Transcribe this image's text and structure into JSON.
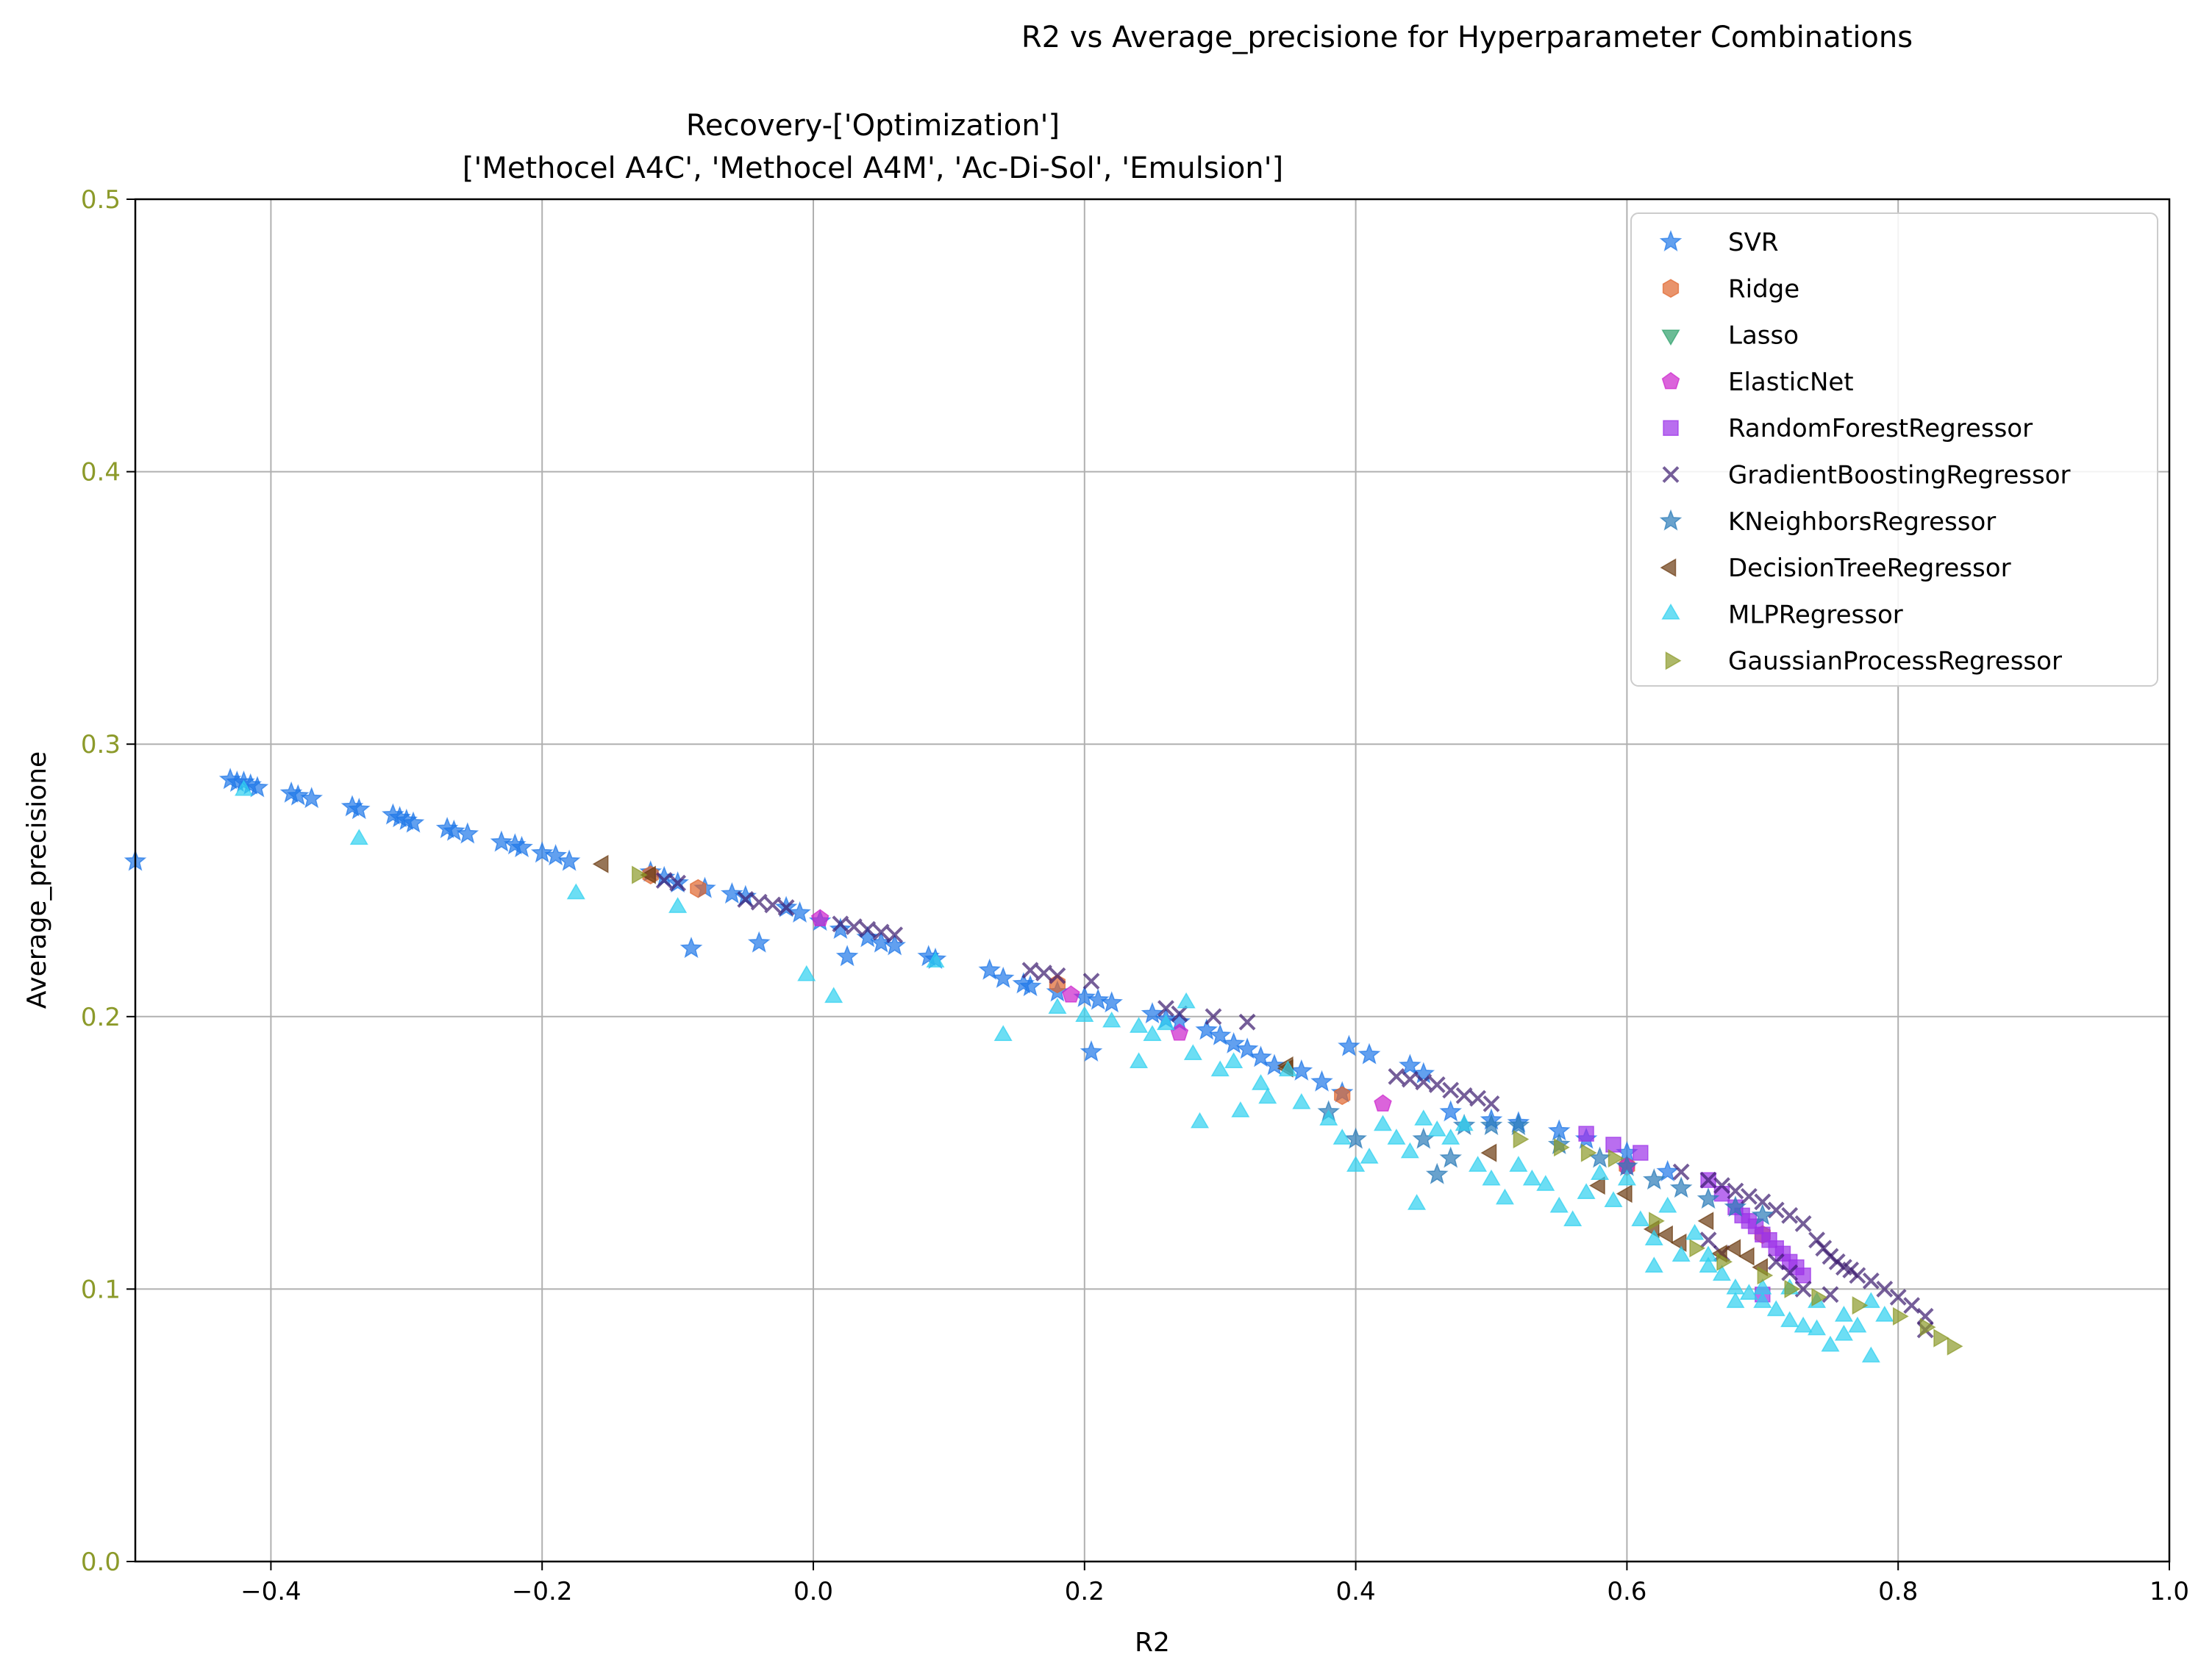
{
  "figure": {
    "suptitle": "R2 vs Average_precisione for Hyperparameter Combinations",
    "title_line1": "Recovery-['Optimization']",
    "title_line2": "['Methocel A4C', 'Methocel A4M', 'Ac-Di-Sol', 'Emulsion']"
  },
  "chart_data": {
    "type": "scatter",
    "xlabel": "R2",
    "ylabel": "Average_precisione",
    "xlim": [
      -0.5,
      1.0
    ],
    "ylim": [
      0.0,
      0.5
    ],
    "xticks": [
      -0.4,
      -0.2,
      0.0,
      0.2,
      0.4,
      0.6,
      0.8,
      1.0
    ],
    "xtick_labels": [
      "−0.4",
      "−0.2",
      "0.0",
      "0.2",
      "0.4",
      "0.6",
      "0.8",
      "1.0"
    ],
    "yticks": [
      0.0,
      0.1,
      0.2,
      0.3,
      0.4,
      0.5
    ],
    "ytick_labels": [
      "0.0",
      "0.1",
      "0.2",
      "0.3",
      "0.4",
      "0.5"
    ],
    "ytick_color": "#8c9a2a",
    "grid": true,
    "legend_position": "top-right",
    "series": [
      {
        "name": "SVR",
        "marker": "star",
        "color": "#1f77e8",
        "points": [
          [
            -0.5,
            0.257
          ],
          [
            -0.43,
            0.287
          ],
          [
            -0.425,
            0.286
          ],
          [
            -0.42,
            0.286
          ],
          [
            -0.415,
            0.285
          ],
          [
            -0.41,
            0.284
          ],
          [
            -0.385,
            0.282
          ],
          [
            -0.38,
            0.281
          ],
          [
            -0.37,
            0.28
          ],
          [
            -0.34,
            0.277
          ],
          [
            -0.335,
            0.276
          ],
          [
            -0.31,
            0.274
          ],
          [
            -0.305,
            0.273
          ],
          [
            -0.3,
            0.272
          ],
          [
            -0.295,
            0.271
          ],
          [
            -0.27,
            0.269
          ],
          [
            -0.265,
            0.268
          ],
          [
            -0.255,
            0.267
          ],
          [
            -0.23,
            0.264
          ],
          [
            -0.22,
            0.263
          ],
          [
            -0.215,
            0.262
          ],
          [
            -0.2,
            0.26
          ],
          [
            -0.19,
            0.259
          ],
          [
            -0.18,
            0.257
          ],
          [
            -0.12,
            0.253
          ],
          [
            -0.11,
            0.251
          ],
          [
            -0.1,
            0.249
          ],
          [
            -0.09,
            0.225
          ],
          [
            -0.08,
            0.247
          ],
          [
            -0.06,
            0.245
          ],
          [
            -0.05,
            0.244
          ],
          [
            -0.04,
            0.227
          ],
          [
            -0.02,
            0.24
          ],
          [
            -0.01,
            0.238
          ],
          [
            0.005,
            0.235
          ],
          [
            0.02,
            0.232
          ],
          [
            0.025,
            0.222
          ],
          [
            0.04,
            0.229
          ],
          [
            0.05,
            0.227
          ],
          [
            0.06,
            0.226
          ],
          [
            0.085,
            0.222
          ],
          [
            0.09,
            0.221
          ],
          [
            0.13,
            0.217
          ],
          [
            0.14,
            0.214
          ],
          [
            0.155,
            0.212
          ],
          [
            0.16,
            0.211
          ],
          [
            0.18,
            0.209
          ],
          [
            0.2,
            0.207
          ],
          [
            0.205,
            0.187
          ],
          [
            0.21,
            0.206
          ],
          [
            0.22,
            0.205
          ],
          [
            0.25,
            0.201
          ],
          [
            0.26,
            0.199
          ],
          [
            0.27,
            0.198
          ],
          [
            0.29,
            0.195
          ],
          [
            0.3,
            0.193
          ],
          [
            0.31,
            0.19
          ],
          [
            0.32,
            0.188
          ],
          [
            0.33,
            0.185
          ],
          [
            0.34,
            0.182
          ],
          [
            0.36,
            0.18
          ],
          [
            0.375,
            0.176
          ],
          [
            0.39,
            0.172
          ],
          [
            0.395,
            0.189
          ],
          [
            0.41,
            0.186
          ],
          [
            0.44,
            0.182
          ],
          [
            0.45,
            0.179
          ],
          [
            0.47,
            0.165
          ],
          [
            0.5,
            0.162
          ],
          [
            0.52,
            0.161
          ],
          [
            0.55,
            0.158
          ],
          [
            0.57,
            0.155
          ],
          [
            0.6,
            0.15
          ],
          [
            0.63,
            0.143
          ]
        ]
      },
      {
        "name": "Ridge",
        "marker": "hexagon",
        "color": "#e0652c",
        "points": [
          [
            -0.12,
            0.252
          ],
          [
            -0.085,
            0.247
          ],
          [
            0.18,
            0.212
          ],
          [
            0.39,
            0.171
          ],
          [
            0.6,
            0.145
          ],
          [
            0.7,
            0.12
          ]
        ]
      },
      {
        "name": "Lasso",
        "marker": "triangle-down",
        "color": "#2ca06a",
        "points": []
      },
      {
        "name": "ElasticNet",
        "marker": "pentagon",
        "color": "#cc22cc",
        "points": [
          [
            0.005,
            0.236
          ],
          [
            0.19,
            0.208
          ],
          [
            0.27,
            0.194
          ],
          [
            0.42,
            0.168
          ],
          [
            0.6,
            0.145
          ]
        ]
      },
      {
        "name": "RandomForestRegressor",
        "marker": "square",
        "color": "#9b30e8",
        "points": [
          [
            0.57,
            0.157
          ],
          [
            0.59,
            0.153
          ],
          [
            0.61,
            0.15
          ],
          [
            0.66,
            0.14
          ],
          [
            0.67,
            0.135
          ],
          [
            0.68,
            0.13
          ],
          [
            0.685,
            0.127
          ],
          [
            0.69,
            0.125
          ],
          [
            0.695,
            0.123
          ],
          [
            0.7,
            0.12
          ],
          [
            0.705,
            0.118
          ],
          [
            0.71,
            0.115
          ],
          [
            0.715,
            0.113
          ],
          [
            0.72,
            0.11
          ],
          [
            0.725,
            0.108
          ],
          [
            0.7,
            0.098
          ],
          [
            0.73,
            0.105
          ]
        ]
      },
      {
        "name": "GradientBoostingRegressor",
        "marker": "x",
        "color": "#3b1a6e",
        "points": [
          [
            -0.11,
            0.25
          ],
          [
            -0.1,
            0.249
          ],
          [
            -0.05,
            0.243
          ],
          [
            -0.04,
            0.242
          ],
          [
            -0.03,
            0.241
          ],
          [
            -0.02,
            0.24
          ],
          [
            0.02,
            0.234
          ],
          [
            0.03,
            0.233
          ],
          [
            0.04,
            0.232
          ],
          [
            0.05,
            0.231
          ],
          [
            0.06,
            0.23
          ],
          [
            0.16,
            0.217
          ],
          [
            0.17,
            0.216
          ],
          [
            0.18,
            0.215
          ],
          [
            0.205,
            0.213
          ],
          [
            0.26,
            0.203
          ],
          [
            0.27,
            0.201
          ],
          [
            0.295,
            0.2
          ],
          [
            0.32,
            0.198
          ],
          [
            0.43,
            0.178
          ],
          [
            0.44,
            0.177
          ],
          [
            0.45,
            0.176
          ],
          [
            0.46,
            0.175
          ],
          [
            0.47,
            0.173
          ],
          [
            0.48,
            0.171
          ],
          [
            0.49,
            0.17
          ],
          [
            0.5,
            0.168
          ],
          [
            0.64,
            0.143
          ],
          [
            0.66,
            0.14
          ],
          [
            0.67,
            0.138
          ],
          [
            0.68,
            0.136
          ],
          [
            0.69,
            0.134
          ],
          [
            0.7,
            0.132
          ],
          [
            0.71,
            0.129
          ],
          [
            0.72,
            0.127
          ],
          [
            0.73,
            0.124
          ],
          [
            0.74,
            0.118
          ],
          [
            0.745,
            0.115
          ],
          [
            0.75,
            0.112
          ],
          [
            0.755,
            0.11
          ],
          [
            0.76,
            0.108
          ],
          [
            0.765,
            0.107
          ],
          [
            0.77,
            0.105
          ],
          [
            0.78,
            0.103
          ],
          [
            0.79,
            0.1
          ],
          [
            0.8,
            0.097
          ],
          [
            0.81,
            0.094
          ],
          [
            0.82,
            0.09
          ],
          [
            0.82,
            0.085
          ],
          [
            0.67,
            0.113
          ],
          [
            0.66,
            0.118
          ],
          [
            0.71,
            0.11
          ],
          [
            0.72,
            0.106
          ],
          [
            0.73,
            0.1
          ],
          [
            0.75,
            0.098
          ]
        ]
      },
      {
        "name": "KNeighborsRegressor",
        "marker": "star",
        "color": "#2a7ab8",
        "points": [
          [
            0.38,
            0.165
          ],
          [
            0.4,
            0.155
          ],
          [
            0.45,
            0.155
          ],
          [
            0.46,
            0.142
          ],
          [
            0.47,
            0.148
          ],
          [
            0.48,
            0.16
          ],
          [
            0.5,
            0.16
          ],
          [
            0.52,
            0.16
          ],
          [
            0.55,
            0.153
          ],
          [
            0.58,
            0.148
          ],
          [
            0.6,
            0.145
          ],
          [
            0.62,
            0.14
          ],
          [
            0.64,
            0.137
          ],
          [
            0.66,
            0.133
          ],
          [
            0.68,
            0.13
          ],
          [
            0.7,
            0.127
          ]
        ]
      },
      {
        "name": "DecisionTreeRegressor",
        "marker": "triangle-left",
        "color": "#6b3a10",
        "points": [
          [
            -0.155,
            0.256
          ],
          [
            -0.12,
            0.252
          ],
          [
            0.35,
            0.181
          ],
          [
            0.35,
            0.182
          ],
          [
            0.5,
            0.15
          ],
          [
            0.58,
            0.138
          ],
          [
            0.6,
            0.135
          ],
          [
            0.62,
            0.122
          ],
          [
            0.63,
            0.12
          ],
          [
            0.64,
            0.117
          ],
          [
            0.66,
            0.125
          ],
          [
            0.67,
            0.113
          ],
          [
            0.68,
            0.115
          ],
          [
            0.69,
            0.112
          ],
          [
            0.7,
            0.108
          ]
        ]
      },
      {
        "name": "MLPRegressor",
        "marker": "triangle-up",
        "color": "#2dd0f0",
        "points": [
          [
            -0.42,
            0.283
          ],
          [
            -0.335,
            0.265
          ],
          [
            -0.175,
            0.245
          ],
          [
            -0.1,
            0.24
          ],
          [
            0.09,
            0.22
          ],
          [
            -0.005,
            0.215
          ],
          [
            0.015,
            0.207
          ],
          [
            0.14,
            0.193
          ],
          [
            0.18,
            0.203
          ],
          [
            0.2,
            0.2
          ],
          [
            0.22,
            0.198
          ],
          [
            0.24,
            0.196
          ],
          [
            0.24,
            0.183
          ],
          [
            0.25,
            0.193
          ],
          [
            0.26,
            0.197
          ],
          [
            0.275,
            0.205
          ],
          [
            0.28,
            0.186
          ],
          [
            0.285,
            0.161
          ],
          [
            0.3,
            0.18
          ],
          [
            0.31,
            0.183
          ],
          [
            0.315,
            0.165
          ],
          [
            0.33,
            0.175
          ],
          [
            0.335,
            0.17
          ],
          [
            0.35,
            0.18
          ],
          [
            0.36,
            0.168
          ],
          [
            0.38,
            0.162
          ],
          [
            0.39,
            0.155
          ],
          [
            0.4,
            0.145
          ],
          [
            0.41,
            0.148
          ],
          [
            0.42,
            0.16
          ],
          [
            0.43,
            0.155
          ],
          [
            0.44,
            0.15
          ],
          [
            0.445,
            0.131
          ],
          [
            0.45,
            0.162
          ],
          [
            0.46,
            0.158
          ],
          [
            0.47,
            0.155
          ],
          [
            0.48,
            0.16
          ],
          [
            0.49,
            0.145
          ],
          [
            0.5,
            0.14
          ],
          [
            0.51,
            0.133
          ],
          [
            0.52,
            0.145
          ],
          [
            0.53,
            0.14
          ],
          [
            0.54,
            0.138
          ],
          [
            0.55,
            0.13
          ],
          [
            0.56,
            0.125
          ],
          [
            0.57,
            0.135
          ],
          [
            0.58,
            0.142
          ],
          [
            0.59,
            0.132
          ],
          [
            0.6,
            0.14
          ],
          [
            0.61,
            0.125
          ],
          [
            0.62,
            0.118
          ],
          [
            0.63,
            0.13
          ],
          [
            0.64,
            0.112
          ],
          [
            0.65,
            0.12
          ],
          [
            0.66,
            0.108
          ],
          [
            0.67,
            0.105
          ],
          [
            0.68,
            0.1
          ],
          [
            0.69,
            0.098
          ],
          [
            0.7,
            0.095
          ],
          [
            0.71,
            0.092
          ],
          [
            0.72,
            0.088
          ],
          [
            0.73,
            0.086
          ],
          [
            0.74,
            0.085
          ],
          [
            0.75,
            0.079
          ],
          [
            0.76,
            0.083
          ],
          [
            0.77,
            0.086
          ],
          [
            0.78,
            0.075
          ],
          [
            0.79,
            0.09
          ],
          [
            0.62,
            0.108
          ],
          [
            0.66,
            0.112
          ],
          [
            0.68,
            0.095
          ],
          [
            0.7,
            0.1
          ],
          [
            0.72,
            0.1
          ],
          [
            0.74,
            0.095
          ],
          [
            0.76,
            0.09
          ],
          [
            0.78,
            0.095
          ]
        ]
      },
      {
        "name": "GaussianProcessRegressor",
        "marker": "triangle-right",
        "color": "#8c9a2a",
        "points": [
          [
            -0.13,
            0.252
          ],
          [
            0.52,
            0.155
          ],
          [
            0.55,
            0.152
          ],
          [
            0.57,
            0.15
          ],
          [
            0.59,
            0.148
          ],
          [
            0.62,
            0.125
          ],
          [
            0.65,
            0.115
          ],
          [
            0.67,
            0.11
          ],
          [
            0.7,
            0.105
          ],
          [
            0.72,
            0.1
          ],
          [
            0.74,
            0.097
          ],
          [
            0.77,
            0.094
          ],
          [
            0.8,
            0.09
          ],
          [
            0.82,
            0.086
          ],
          [
            0.83,
            0.082
          ],
          [
            0.84,
            0.079
          ]
        ]
      }
    ]
  }
}
